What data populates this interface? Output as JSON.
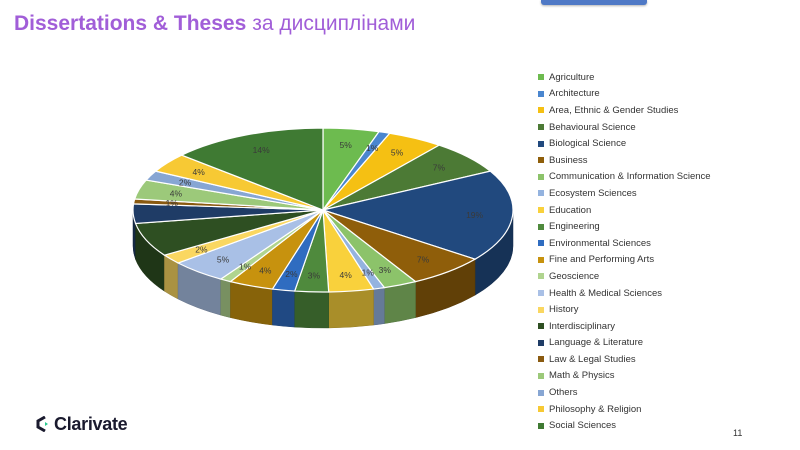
{
  "slide": {
    "title_main": "Dissertations & Theses",
    "title_sub": "за дисциплінами",
    "page_number": "11",
    "logo_text": "Clarivate"
  },
  "chart_data": {
    "type": "pie",
    "title": "",
    "legend_position": "right",
    "categories": [
      "Agriculture",
      "Architecture",
      "Area, Ethnic & Gender Studies",
      "Behavioural  Science",
      "Biological  Science",
      "Business",
      "Communication &  Information  Science",
      "Ecosystem Sciences",
      "Education",
      "Engineering",
      "Environmental Sciences",
      "Fine and Performing Arts",
      "Geoscience",
      "Health &  Medical Sciences",
      "History",
      "Interdisciplinary",
      "Language &  Literature",
      "Law & Legal Studies",
      "Math & Physics",
      "Others",
      "Philosophy &  Religion",
      "Social  Sciences"
    ],
    "values": [
      5,
      1,
      5,
      7,
      19,
      7,
      3,
      1,
      4,
      3,
      2,
      4,
      1,
      5,
      2,
      7,
      4,
      1,
      4,
      2,
      4,
      14
    ],
    "labels": [
      "5%",
      "1%",
      "5%",
      "7%",
      "19%",
      "7%",
      "3%",
      "1%",
      "4%",
      "3%",
      "2%",
      "4%",
      "1%",
      "5%",
      "2%",
      "",
      "",
      "1%",
      "4%",
      "2%",
      "4%",
      "14%"
    ],
    "colors": [
      "#6dbb4f",
      "#4a86cf",
      "#f5c013",
      "#4c7a35",
      "#21497e",
      "#8f5e0a",
      "#8cc36a",
      "#94b3df",
      "#f9d13c",
      "#4f8a3d",
      "#2f6cc0",
      "#c7920e",
      "#b0d48f",
      "#a9c0e6",
      "#fad761",
      "#2e4f22",
      "#1f3c66",
      "#8a5a10",
      "#9cc97a",
      "#87a6d3",
      "#f7c934",
      "#3f7a33"
    ]
  }
}
